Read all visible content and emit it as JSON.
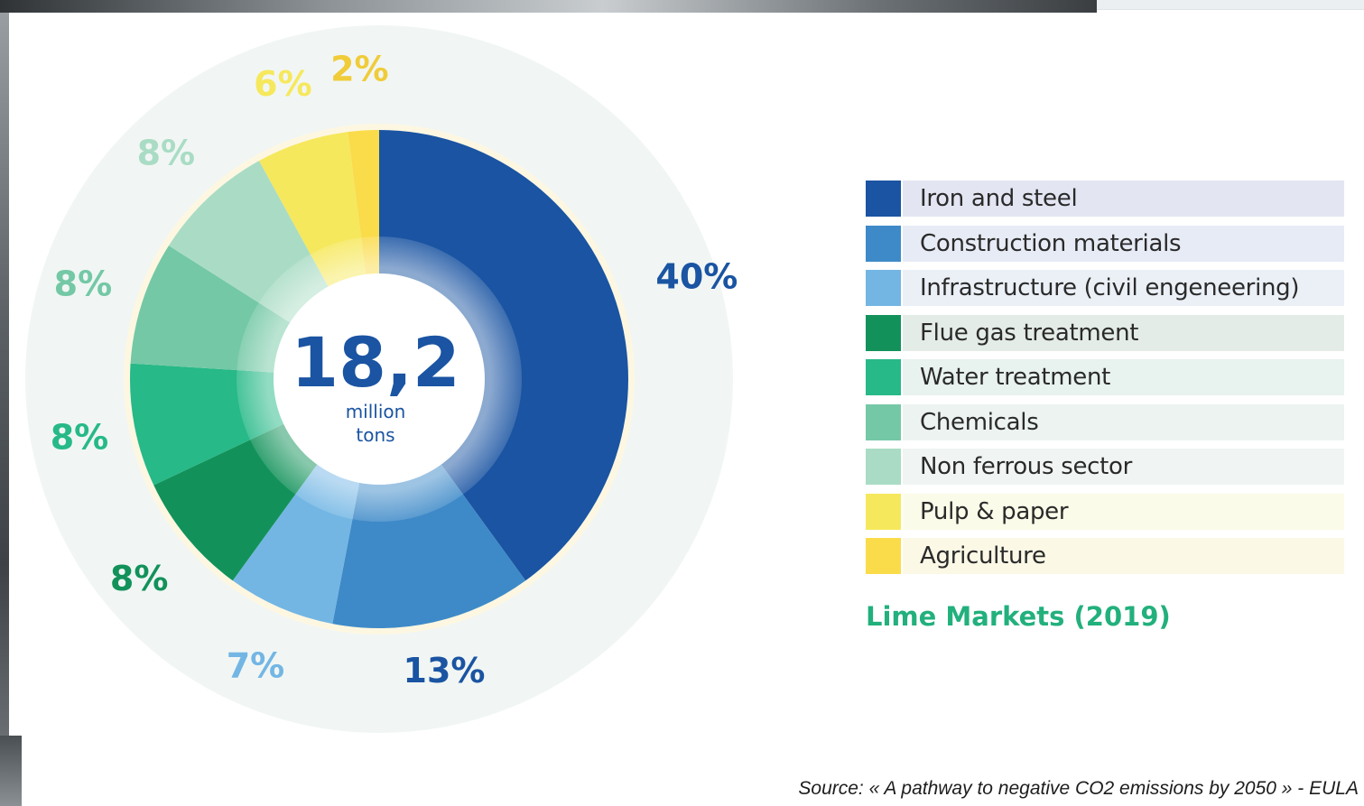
{
  "chart_data": {
    "type": "pie",
    "variant": "donut",
    "center": {
      "value": "18,2",
      "line1": "million",
      "line2": "tons"
    },
    "slices": [
      {
        "category": "Iron and steel",
        "value": 40,
        "label": "40%",
        "color": "#1a54a2"
      },
      {
        "category": "Construction materials",
        "value": 13,
        "label": "13%",
        "color": "#3e8ac8"
      },
      {
        "category": "Infrastructure (civil engeneering)",
        "value": 7,
        "label": "7%",
        "color": "#73b6e4"
      },
      {
        "category": "Flue gas treatment",
        "value": 8,
        "label": "8%",
        "color": "#12925a"
      },
      {
        "category": "Water treatment",
        "value": 8,
        "label": "8%",
        "color": "#27b988"
      },
      {
        "category": "Chemicals",
        "value": 8,
        "label": "8%",
        "color": "#74c8a6"
      },
      {
        "category": "Non ferrous sector",
        "value": 8,
        "label": "8%",
        "color": "#aadcc5"
      },
      {
        "category": "Pulp & paper",
        "value": 6,
        "label": "6%",
        "color": "#f6e85c"
      },
      {
        "category": "Agriculture",
        "value": 2,
        "label": "2%",
        "color": "#fadb4a"
      }
    ],
    "label_colors": [
      "#1a54a2",
      "#1a54a2",
      "#73b6e4",
      "#12925a",
      "#27b988",
      "#74c8a6",
      "#aadcc5",
      "#f6e85c",
      "#f0cc3a"
    ],
    "legend": [
      {
        "label": "Iron and steel",
        "color": "#1a54a2",
        "bg": "#e3e6f2"
      },
      {
        "label": "Construction materials",
        "color": "#3e8ac8",
        "bg": "#e7ebf5"
      },
      {
        "label": "Infrastructure (civil engeneering)",
        "color": "#73b6e4",
        "bg": "#ebf0f7"
      },
      {
        "label": "Flue gas treatment",
        "color": "#12925a",
        "bg": "#e4ece7"
      },
      {
        "label": "Water treatment",
        "color": "#27b988",
        "bg": "#e8f2ee"
      },
      {
        "label": "Chemicals",
        "color": "#74c8a6",
        "bg": "#ecf3f0"
      },
      {
        "label": "Non ferrous sector",
        "color": "#aadcc5",
        "bg": "#f0f5f3"
      },
      {
        "label": "Pulp & paper",
        "color": "#f6e85c",
        "bg": "#fbfbe9"
      },
      {
        "label": "Agriculture",
        "color": "#fadb4a",
        "bg": "#fbf8e6"
      }
    ],
    "title": "Lime Markets (2019)",
    "source": "Source: « A pathway to negative CO2 emissions by 2050 » - EULA"
  }
}
